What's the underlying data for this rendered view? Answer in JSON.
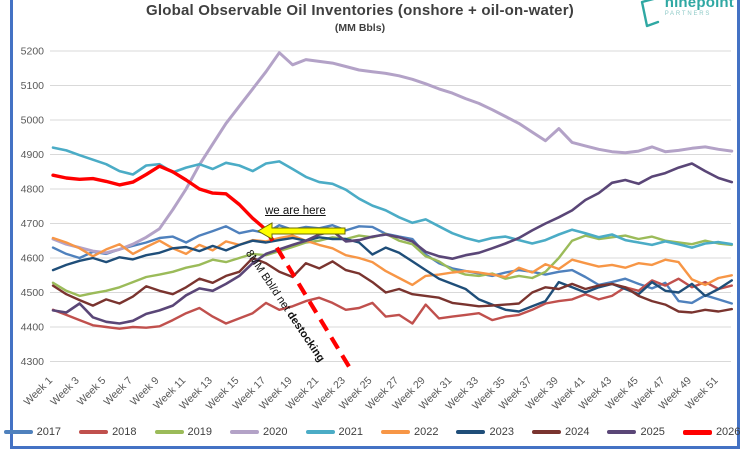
{
  "header": {
    "title": "Global Observable Oil Inventories (onshore + oil-on-water)",
    "subtitle": "(MM Bbls)",
    "logo_name": "ninepoint",
    "logo_sub": "PARTNERS",
    "logo_color": "#2FA8A3"
  },
  "annotations": {
    "we_are_here": "we are here",
    "destocking_prefix": "8MM Bbl/d net ",
    "destocking_bold": "destocking",
    "arrow_color": "#FFFF00"
  },
  "frame_border_color": "#4472C4",
  "chart_data": {
    "type": "line",
    "title": "Global Observable Oil Inventories (onshore + oil-on-water)",
    "xlabel": "",
    "ylabel": "MM Bbls",
    "ylim": [
      4300,
      5200
    ],
    "grid": "horizontal",
    "legend_position": "bottom",
    "y_ticks": [
      5200,
      5100,
      5000,
      4900,
      4800,
      4700,
      4600,
      4500,
      4400,
      4300
    ],
    "x_ticks": [
      "Week 1",
      "Week 3",
      "Week 5",
      "Week 7",
      "Week 9",
      "Week 11",
      "Week 13",
      "Week 15",
      "Week 17",
      "Week 19",
      "Week 21",
      "Week 23",
      "Week 25",
      "Week 27",
      "Week 29",
      "Week 31",
      "Week 33",
      "Week 35",
      "Week 37",
      "Week 39",
      "Week 41",
      "Week 43",
      "Week 45",
      "Week 47",
      "Week 49",
      "Week 51"
    ],
    "x_weeks": 52,
    "series": [
      {
        "name": "2017",
        "color": "#4F81BD",
        "width": 2.4,
        "values": [
          4630,
          4612,
          4600,
          4618,
          4612,
          4625,
          4635,
          4645,
          4658,
          4662,
          4645,
          4665,
          4678,
          4692,
          4672,
          4680,
          4672,
          4695,
          4682,
          4690,
          4686,
          4695,
          4680,
          4692,
          4690,
          4670,
          4662,
          4655,
          4610,
          4585,
          4570,
          4562,
          4555,
          4548,
          4558,
          4565,
          4560,
          4552,
          4560,
          4565,
          4545,
          4522,
          4530,
          4540,
          4525,
          4512,
          4528,
          4475,
          4470,
          4492,
          4480,
          4468
        ]
      },
      {
        "name": "2018",
        "color": "#C0504D",
        "width": 2.4,
        "values": [
          4450,
          4435,
          4420,
          4405,
          4400,
          4395,
          4400,
          4398,
          4402,
          4420,
          4440,
          4455,
          4430,
          4410,
          4425,
          4440,
          4470,
          4450,
          4460,
          4475,
          4485,
          4470,
          4450,
          4455,
          4470,
          4430,
          4435,
          4410,
          4465,
          4425,
          4430,
          4435,
          4440,
          4420,
          4430,
          4435,
          4450,
          4468,
          4475,
          4480,
          4495,
          4480,
          4490,
          4515,
          4505,
          4535,
          4520,
          4540,
          4515,
          4530,
          4510,
          4520
        ]
      },
      {
        "name": "2019",
        "color": "#9BBB59",
        "width": 2.4,
        "values": [
          4528,
          4505,
          4490,
          4498,
          4505,
          4515,
          4530,
          4545,
          4552,
          4560,
          4572,
          4580,
          4595,
          4588,
          4600,
          4612,
          4608,
          4620,
          4632,
          4645,
          4650,
          4660,
          4655,
          4665,
          4660,
          4670,
          4650,
          4640,
          4605,
          4590,
          4565,
          4552,
          4548,
          4555,
          4540,
          4548,
          4542,
          4560,
          4600,
          4650,
          4665,
          4655,
          4660,
          4665,
          4655,
          4662,
          4650,
          4645,
          4640,
          4650,
          4642,
          4638
        ]
      },
      {
        "name": "2020",
        "color": "#B3A2C7",
        "width": 3,
        "values": [
          4655,
          4640,
          4630,
          4620,
          4615,
          4625,
          4640,
          4660,
          4685,
          4740,
          4800,
          4870,
          4930,
          4990,
          5040,
          5090,
          5140,
          5195,
          5160,
          5175,
          5170,
          5165,
          5155,
          5145,
          5140,
          5135,
          5128,
          5118,
          5105,
          5090,
          5078,
          5062,
          5048,
          5030,
          5010,
          4990,
          4965,
          4940,
          4975,
          4935,
          4925,
          4915,
          4908,
          4905,
          4910,
          4922,
          4908,
          4912,
          4918,
          4922,
          4915,
          4910
        ]
      },
      {
        "name": "2021",
        "color": "#4BACC6",
        "width": 2.6,
        "values": [
          4920,
          4912,
          4898,
          4885,
          4872,
          4852,
          4842,
          4868,
          4872,
          4848,
          4862,
          4872,
          4858,
          4876,
          4868,
          4852,
          4874,
          4880,
          4858,
          4835,
          4820,
          4815,
          4798,
          4772,
          4752,
          4738,
          4718,
          4702,
          4712,
          4692,
          4672,
          4658,
          4648,
          4658,
          4662,
          4652,
          4642,
          4652,
          4668,
          4682,
          4672,
          4660,
          4668,
          4652,
          4645,
          4638,
          4648,
          4640,
          4630,
          4642,
          4646,
          4640
        ]
      },
      {
        "name": "2022",
        "color": "#F79646",
        "width": 2.4,
        "values": [
          4658,
          4645,
          4628,
          4605,
          4625,
          4640,
          4612,
          4632,
          4650,
          4628,
          4612,
          4638,
          4622,
          4648,
          4638,
          4652,
          4648,
          4658,
          4665,
          4650,
          4638,
          4628,
          4608,
          4600,
          4588,
          4562,
          4542,
          4522,
          4548,
          4552,
          4558,
          4562,
          4558,
          4552,
          4545,
          4572,
          4558,
          4582,
          4568,
          4595,
          4585,
          4575,
          4580,
          4572,
          4585,
          4580,
          4595,
          4588,
          4538,
          4522,
          4542,
          4550
        ]
      },
      {
        "name": "2023",
        "color": "#1F4E79",
        "width": 2.4,
        "values": [
          4565,
          4580,
          4592,
          4600,
          4588,
          4602,
          4596,
          4608,
          4615,
          4628,
          4632,
          4620,
          4635,
          4622,
          4638,
          4650,
          4645,
          4652,
          4658,
          4650,
          4660,
          4655,
          4655,
          4645,
          4610,
          4630,
          4615,
          4590,
          4565,
          4540,
          4525,
          4510,
          4480,
          4465,
          4450,
          4445,
          4460,
          4475,
          4530,
          4515,
          4500,
          4515,
          4525,
          4510,
          4495,
          4530,
          4505,
          4500,
          4525,
          4490,
          4510,
          4535
        ]
      },
      {
        "name": "2024",
        "color": "#7A342F",
        "width": 2.4,
        "values": [
          4520,
          4495,
          4478,
          4462,
          4480,
          4468,
          4488,
          4518,
          4505,
          4495,
          4515,
          4540,
          4528,
          4548,
          4560,
          4600,
          4585,
          4560,
          4545,
          4585,
          4570,
          4590,
          4565,
          4555,
          4530,
          4500,
          4510,
          4495,
          4490,
          4485,
          4470,
          4465,
          4460,
          4462,
          4465,
          4468,
          4500,
          4515,
          4510,
          4525,
          4510,
          4520,
          4525,
          4515,
          4490,
          4475,
          4465,
          4445,
          4442,
          4450,
          4445,
          4452
        ]
      },
      {
        "name": "2025",
        "color": "#5A4677",
        "width": 2.6,
        "values": [
          4448,
          4442,
          4468,
          4428,
          4415,
          4410,
          4418,
          4438,
          4448,
          4462,
          4492,
          4512,
          4505,
          4525,
          4548,
          4585,
          4612,
          4625,
          4638,
          4650,
          4668,
          4678,
          4648,
          4652,
          4662,
          4668,
          4660,
          4648,
          4618,
          4605,
          4598,
          4608,
          4615,
          4628,
          4642,
          4658,
          4680,
          4700,
          4718,
          4738,
          4768,
          4788,
          4818,
          4826,
          4815,
          4836,
          4846,
          4862,
          4874,
          4852,
          4832,
          4820
        ]
      },
      {
        "name": "2026",
        "color": "#FF0000",
        "width": 3.4,
        "values": [
          4840,
          4832,
          4828,
          4830,
          4822,
          4812,
          4820,
          4842,
          4866,
          4850,
          4826,
          4800,
          4788,
          4786,
          4755,
          4715,
          4682
        ]
      }
    ],
    "projection": {
      "label": "8MM Bbl/d net destocking",
      "color": "#FF0000",
      "style": "dashed",
      "x": [
        17,
        23.4
      ],
      "y": [
        4682,
        4275
      ]
    }
  }
}
